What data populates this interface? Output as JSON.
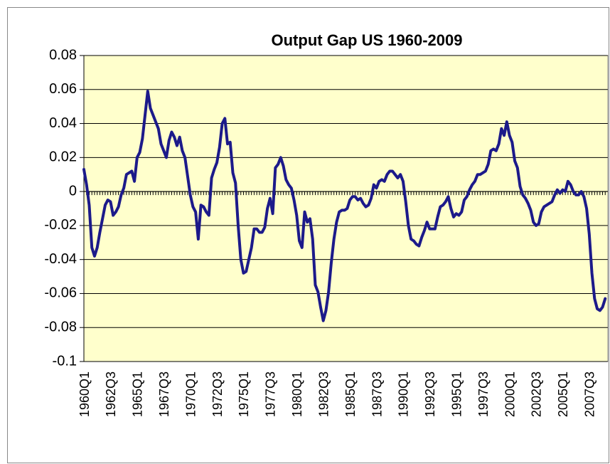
{
  "chart_data": {
    "type": "line",
    "title": "Output Gap US 1960-2009",
    "categories": [
      "1960Q1",
      null,
      null,
      null,
      null,
      null,
      null,
      null,
      null,
      null,
      "1962Q3",
      null,
      null,
      null,
      null,
      null,
      null,
      null,
      null,
      null,
      "1965Q1",
      null,
      null,
      null,
      null,
      null,
      null,
      null,
      null,
      null,
      "1967Q3",
      null,
      null,
      null,
      null,
      null,
      null,
      null,
      null,
      null,
      "1970Q1",
      null,
      null,
      null,
      null,
      null,
      null,
      null,
      null,
      null,
      "1972Q3",
      null,
      null,
      null,
      null,
      null,
      null,
      null,
      null,
      null,
      "1975Q1",
      null,
      null,
      null,
      null,
      null,
      null,
      null,
      null,
      null,
      "1977Q3",
      null,
      null,
      null,
      null,
      null,
      null,
      null,
      null,
      null,
      "1980Q1",
      null,
      null,
      null,
      null,
      null,
      null,
      null,
      null,
      null,
      "1982Q3",
      null,
      null,
      null,
      null,
      null,
      null,
      null,
      null,
      null,
      "1985Q1",
      null,
      null,
      null,
      null,
      null,
      null,
      null,
      null,
      null,
      "1987Q3",
      null,
      null,
      null,
      null,
      null,
      null,
      null,
      null,
      null,
      "1990Q1",
      null,
      null,
      null,
      null,
      null,
      null,
      null,
      null,
      null,
      "1992Q3",
      null,
      null,
      null,
      null,
      null,
      null,
      null,
      null,
      null,
      "1995Q1",
      null,
      null,
      null,
      null,
      null,
      null,
      null,
      null,
      null,
      "1997Q3",
      null,
      null,
      null,
      null,
      null,
      null,
      null,
      null,
      null,
      "2000Q1",
      null,
      null,
      null,
      null,
      null,
      null,
      null,
      null,
      null,
      "2002Q3",
      null,
      null,
      null,
      null,
      null,
      null,
      null,
      null,
      null,
      "2005Q1",
      null,
      null,
      null,
      null,
      null,
      null,
      null,
      null,
      null,
      "2007Q3",
      null,
      null,
      null,
      null,
      null,
      null
    ],
    "values": [
      0.013,
      0.004,
      -0.008,
      -0.033,
      -0.038,
      -0.033,
      -0.024,
      -0.016,
      -0.008,
      -0.005,
      -0.006,
      -0.014,
      -0.012,
      -0.009,
      -0.002,
      0.002,
      0.01,
      0.011,
      0.012,
      0.006,
      0.02,
      0.023,
      0.031,
      0.045,
      0.059,
      0.049,
      0.045,
      0.041,
      0.037,
      0.028,
      0.024,
      0.02,
      0.03,
      0.035,
      0.032,
      0.027,
      0.032,
      0.024,
      0.02,
      0.009,
      -0.002,
      -0.009,
      -0.012,
      -0.028,
      -0.008,
      -0.009,
      -0.012,
      -0.014,
      0.008,
      0.013,
      0.017,
      0.026,
      0.04,
      0.043,
      0.028,
      0.029,
      0.011,
      0.005,
      -0.02,
      -0.04,
      -0.048,
      -0.047,
      -0.04,
      -0.033,
      -0.022,
      -0.022,
      -0.024,
      -0.024,
      -0.021,
      -0.01,
      -0.004,
      -0.013,
      0.014,
      0.016,
      0.02,
      0.015,
      0.007,
      0.004,
      0.002,
      -0.005,
      -0.014,
      -0.029,
      -0.033,
      -0.012,
      -0.018,
      -0.016,
      -0.028,
      -0.055,
      -0.059,
      -0.068,
      -0.076,
      -0.07,
      -0.059,
      -0.042,
      -0.028,
      -0.018,
      -0.012,
      -0.011,
      -0.011,
      -0.01,
      -0.005,
      -0.003,
      -0.003,
      -0.005,
      -0.004,
      -0.007,
      -0.009,
      -0.008,
      -0.004,
      0.004,
      0.002,
      0.006,
      0.007,
      0.006,
      0.01,
      0.012,
      0.012,
      0.01,
      0.008,
      0.01,
      0.006,
      -0.006,
      -0.02,
      -0.028,
      -0.029,
      -0.031,
      -0.032,
      -0.027,
      -0.023,
      -0.018,
      -0.022,
      -0.022,
      -0.022,
      -0.015,
      -0.009,
      -0.008,
      -0.006,
      -0.003,
      -0.01,
      -0.015,
      -0.013,
      -0.014,
      -0.012,
      -0.005,
      -0.003,
      0.001,
      0.004,
      0.006,
      0.01,
      0.01,
      0.011,
      0.012,
      0.016,
      0.024,
      0.025,
      0.024,
      0.028,
      0.037,
      0.033,
      0.041,
      0.033,
      0.029,
      0.018,
      0.014,
      0.003,
      -0.002,
      -0.004,
      -0.007,
      -0.011,
      -0.018,
      -0.02,
      -0.019,
      -0.012,
      -0.009,
      -0.008,
      -0.007,
      -0.006,
      -0.002,
      0.001,
      -0.001,
      0.001,
      0.0,
      0.006,
      0.004,
      0.0,
      -0.002,
      -0.002,
      0.0,
      -0.003,
      -0.01,
      -0.025,
      -0.048,
      -0.063,
      -0.069,
      -0.07,
      -0.068,
      -0.063
    ],
    "color": "#1c1a8a",
    "background": "#ffffcc",
    "ylim": [
      -0.1,
      0.08
    ],
    "yticks": [
      -0.1,
      -0.08,
      -0.06,
      -0.04,
      -0.02,
      0,
      0.02,
      0.04,
      0.06,
      0.08
    ],
    "grid": true
  }
}
